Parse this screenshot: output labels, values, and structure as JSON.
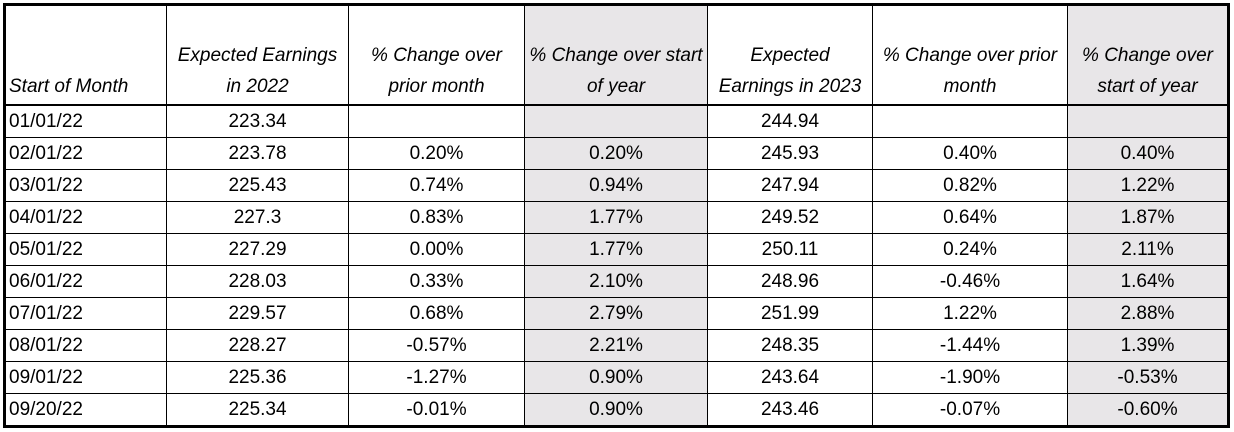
{
  "table": {
    "headers": [
      "Start of Month",
      "Expected Earnings in 2022",
      "% Change over prior month",
      "% Change over start of year",
      "Expected Earnings in 2023",
      "% Change over prior month",
      "% Change over start of year"
    ],
    "rows": [
      [
        "01/01/22",
        "223.34",
        "",
        "",
        "244.94",
        "",
        ""
      ],
      [
        "02/01/22",
        "223.78",
        "0.20%",
        "0.20%",
        "245.93",
        "0.40%",
        "0.40%"
      ],
      [
        "03/01/22",
        "225.43",
        "0.74%",
        "0.94%",
        "247.94",
        "0.82%",
        "1.22%"
      ],
      [
        "04/01/22",
        "227.3",
        "0.83%",
        "1.77%",
        "249.52",
        "0.64%",
        "1.87%"
      ],
      [
        "05/01/22",
        "227.29",
        "0.00%",
        "1.77%",
        "250.11",
        "0.24%",
        "2.11%"
      ],
      [
        "06/01/22",
        "228.03",
        "0.33%",
        "2.10%",
        "248.96",
        "-0.46%",
        "1.64%"
      ],
      [
        "07/01/22",
        "229.57",
        "0.68%",
        "2.79%",
        "251.99",
        "1.22%",
        "2.88%"
      ],
      [
        "08/01/22",
        "228.27",
        "-0.57%",
        "2.21%",
        "248.35",
        "-1.44%",
        "1.39%"
      ],
      [
        "09/01/22",
        "225.36",
        "-1.27%",
        "0.90%",
        "243.64",
        "-1.90%",
        "-0.53%"
      ],
      [
        "09/20/22",
        "225.34",
        "-0.01%",
        "0.90%",
        "243.46",
        "-0.07%",
        "-0.60%"
      ]
    ]
  },
  "colors": {
    "shaded_column_fill": "#e8e6e8",
    "grid_line": "#000000"
  }
}
